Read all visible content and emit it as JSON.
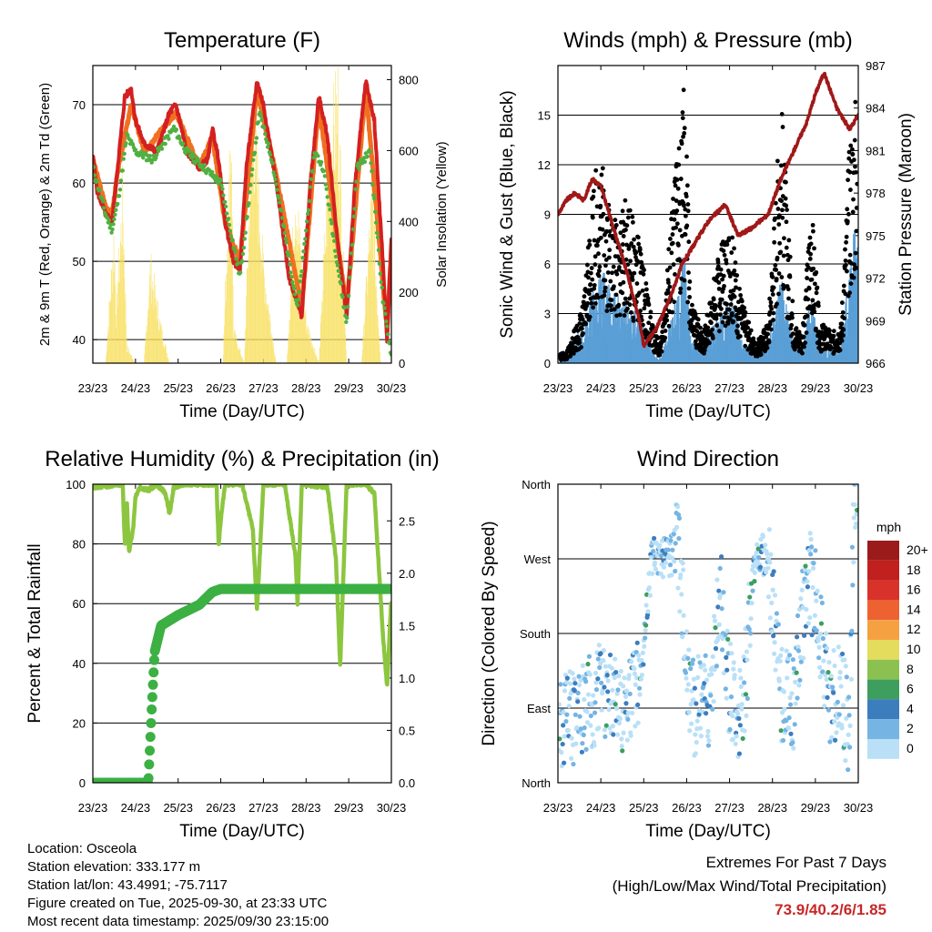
{
  "colors": {
    "temp2m": "#d32020",
    "temp9m": "#f07020",
    "dewpoint": "#50b040",
    "solar": "#f8e060",
    "gust": "#000000",
    "wind": "#5a9fd6",
    "pressure": "#a01818",
    "rh": "#8cc63f",
    "precip": "#3cb043",
    "extremes": "#c62828"
  },
  "x_ticks": [
    "23/23",
    "24/23",
    "25/23",
    "26/23",
    "27/23",
    "28/23",
    "29/23",
    "30/23"
  ],
  "chart_data": [
    {
      "id": "temperature",
      "type": "line",
      "title": "Temperature (F)",
      "xlabel": "Time (Day/UTC)",
      "ylabel": "2m & 9m T (Red, Orange) & 2m Td (Green)",
      "ylabel_right": "Solar Insolation (Yellow)",
      "ylim": [
        37,
        75
      ],
      "ylim_right": [
        0,
        840
      ],
      "xlim": [
        0,
        7
      ],
      "y_ticks": [
        40,
        50,
        60,
        70
      ],
      "y_ticks_right": [
        0,
        200,
        400,
        600,
        800
      ],
      "series": [
        {
          "name": "2m T",
          "x": [
            0,
            0.1,
            0.3,
            0.45,
            0.6,
            0.75,
            0.9,
            1.0,
            1.2,
            1.5,
            1.8,
            1.95,
            2.2,
            2.5,
            2.7,
            2.8,
            2.95,
            3.1,
            3.3,
            3.45,
            3.6,
            3.85,
            4.0,
            4.3,
            4.6,
            4.9,
            5.1,
            5.3,
            5.5,
            5.75,
            5.95,
            6.15,
            6.4,
            6.6,
            6.8,
            6.9,
            7.0
          ],
          "values": [
            63.5,
            59,
            56,
            55,
            63,
            71,
            72,
            68,
            65,
            64,
            69,
            70,
            64,
            62,
            63,
            67,
            63,
            55,
            50,
            49,
            62,
            73,
            70,
            60,
            48,
            43,
            60,
            71,
            66,
            52,
            43,
            60,
            73,
            68,
            50,
            40,
            53
          ]
        },
        {
          "name": "9m T",
          "x": [
            0,
            0.3,
            0.45,
            0.6,
            0.9,
            1.2,
            1.95,
            2.5,
            2.8,
            3.1,
            3.45,
            3.85,
            4.3,
            4.9,
            5.3,
            5.95,
            6.4,
            6.9,
            7.0
          ],
          "values": [
            63,
            57,
            56,
            62,
            70,
            64,
            69,
            62,
            66,
            55,
            50,
            72,
            61,
            44,
            70,
            44,
            72,
            41,
            52
          ]
        },
        {
          "name": "2m Td",
          "x": [
            0,
            0.3,
            0.45,
            0.6,
            0.8,
            1.0,
            1.4,
            1.9,
            2.2,
            2.6,
            3.0,
            3.45,
            3.9,
            4.2,
            4.8,
            5.2,
            5.4,
            5.95,
            6.2,
            6.5,
            6.8,
            7.0
          ],
          "values": [
            62,
            56,
            54,
            58,
            66,
            64,
            63,
            67,
            64,
            62,
            60,
            48,
            69,
            63,
            44,
            64,
            62,
            42,
            62,
            64,
            45,
            38
          ]
        },
        {
          "name": "Solar",
          "axis": "right",
          "x": [
            0.3,
            0.5,
            0.55,
            0.7,
            0.8,
            1.0,
            1.2,
            1.35,
            1.6,
            1.8,
            1.95,
            2.15,
            2.35,
            2.7,
            3.05,
            3.25,
            3.3,
            3.55,
            3.75,
            4.0,
            4.3,
            4.55,
            4.75,
            5.0,
            5.3,
            5.55,
            5.75,
            5.95,
            6.3,
            6.55,
            6.75
          ],
          "values": [
            0,
            400,
            150,
            520,
            50,
            0,
            0,
            300,
            110,
            0,
            0,
            0,
            0,
            0,
            0,
            760,
            100,
            0,
            800,
            300,
            0,
            0,
            550,
            130,
            0,
            650,
            820,
            0,
            0,
            520,
            0
          ]
        }
      ]
    },
    {
      "id": "winds",
      "type": "scatter",
      "title": "Winds (mph) & Pressure (mb)",
      "xlabel": "Time (Day/UTC)",
      "ylabel": "Sonic Wind & Gust (Blue, Black)",
      "ylabel_right": "Station Pressure (Maroon)",
      "ylim": [
        0,
        18
      ],
      "ylim_right": [
        966,
        987
      ],
      "xlim": [
        0,
        7
      ],
      "y_ticks": [
        0,
        3,
        6,
        9,
        12,
        15
      ],
      "y_ticks_right": [
        966,
        969,
        972,
        975,
        978,
        981,
        984,
        987
      ],
      "series": [
        {
          "name": "Gust",
          "x": [
            0.2,
            0.6,
            0.8,
            1.0,
            1.3,
            1.6,
            1.9,
            2.2,
            2.4,
            2.8,
            2.95,
            3.1,
            3.4,
            3.7,
            4.0,
            4.3,
            4.6,
            4.9,
            5.2,
            5.5,
            5.7,
            5.9,
            6.1,
            6.4,
            6.6,
            6.8,
            6.95
          ],
          "values": [
            0.5,
            3,
            9,
            10.5,
            7,
            8,
            6,
            2,
            1,
            11,
            14,
            3,
            1.5,
            5,
            7,
            3,
            1,
            2,
            13,
            2,
            1.5,
            8,
            2,
            1.5,
            2,
            11,
            13
          ]
        },
        {
          "name": "Wind",
          "x": [
            0.2,
            0.6,
            0.8,
            1.0,
            1.3,
            1.6,
            1.9,
            2.2,
            2.4,
            2.8,
            2.95,
            3.1,
            3.4,
            3.7,
            4.0,
            4.3,
            4.6,
            4.9,
            5.2,
            5.5,
            5.7,
            5.9,
            6.1,
            6.4,
            6.6,
            6.8,
            6.95
          ],
          "values": [
            0.2,
            2,
            3,
            4,
            3,
            2.5,
            2,
            0.5,
            0.2,
            3,
            5,
            1,
            0.5,
            2,
            3,
            1,
            0.3,
            0.8,
            4,
            0.8,
            0.5,
            3,
            0.8,
            0.5,
            1,
            4,
            6
          ]
        },
        {
          "name": "Pressure",
          "axis": "right",
          "x": [
            0,
            0.2,
            0.4,
            0.6,
            0.8,
            1.0,
            1.3,
            1.6,
            1.9,
            2.0,
            2.3,
            2.6,
            2.9,
            3.2,
            3.5,
            3.9,
            4.2,
            4.5,
            4.9,
            5.2,
            5.5,
            5.8,
            6.0,
            6.2,
            6.5,
            6.8,
            7.0
          ],
          "values": [
            976.5,
            977.5,
            978,
            977.5,
            979,
            978.5,
            975.5,
            972.5,
            969,
            967.2,
            968.5,
            970.5,
            973,
            974.5,
            976,
            977.2,
            975,
            975.5,
            976.5,
            979,
            981,
            983,
            985,
            986.5,
            984,
            982.5,
            983.5
          ]
        }
      ]
    },
    {
      "id": "humidity",
      "type": "line",
      "title": "Relative Humidity (%) & Precipitation (in)",
      "xlabel": "Time (Day/UTC)",
      "ylabel": "Percent & Total Rainfall",
      "ylim": [
        0,
        100
      ],
      "ylim_right": [
        0,
        2.85
      ],
      "xlim": [
        0,
        7
      ],
      "y_ticks": [
        0,
        20,
        40,
        60,
        80,
        100
      ],
      "y_ticks_right": [
        0.0,
        0.5,
        1.0,
        1.5,
        2.0,
        2.5
      ],
      "series": [
        {
          "name": "RH",
          "x": [
            0,
            0.7,
            0.75,
            0.8,
            0.85,
            0.95,
            1.0,
            1.1,
            1.3,
            1.5,
            1.7,
            1.8,
            1.9,
            2.1,
            2.9,
            2.95,
            3.0,
            3.1,
            3.5,
            3.75,
            3.85,
            4.0,
            4.5,
            4.75,
            4.8,
            4.9,
            5.5,
            5.7,
            5.8,
            5.95,
            6.4,
            6.6,
            6.8,
            6.9,
            7.0
          ],
          "values": [
            99,
            100,
            80,
            93,
            77,
            86,
            96,
            99,
            98,
            100,
            97,
            90,
            99,
            100,
            100,
            80,
            88,
            100,
            100,
            85,
            58,
            100,
            100,
            76,
            60,
            100,
            99,
            75,
            39,
            100,
            100,
            97,
            50,
            32,
            62
          ]
        },
        {
          "name": "Precip",
          "axis": "right",
          "x": [
            0,
            1.3,
            1.38,
            1.45,
            1.6,
            2.0,
            2.5,
            2.8,
            3.0,
            7.0
          ],
          "values": [
            0,
            0,
            0.7,
            1.25,
            1.5,
            1.6,
            1.7,
            1.82,
            1.85,
            1.85
          ]
        }
      ]
    },
    {
      "id": "direction",
      "type": "scatter",
      "title": "Wind Direction",
      "xlabel": "Time (Day/UTC)",
      "ylabel": "Direction (Colored By Speed)",
      "xlim": [
        0,
        7
      ],
      "ylim": [
        0,
        360
      ],
      "y_tick_labels": [
        "North",
        "East",
        "South",
        "West",
        "North"
      ],
      "y_ticks": [
        0,
        90,
        180,
        270,
        360
      ],
      "legend_title": "mph",
      "legend_labels": [
        "20+",
        "18",
        "16",
        "14",
        "12",
        "10",
        "8",
        "6",
        "4",
        "2",
        "0"
      ],
      "legend_colors": [
        "#9b1b1b",
        "#c0201e",
        "#d8322a",
        "#ee6130",
        "#f5a142",
        "#e4dc5c",
        "#8cc152",
        "#3e9e5e",
        "#3c7dbe",
        "#75b4e3",
        "#b9e0f7"
      ],
      "series": [
        {
          "name": "Direction",
          "x": [
            0.2,
            0.5,
            0.8,
            1.0,
            1.3,
            1.6,
            1.9,
            2.2,
            2.5,
            2.8,
            3.1,
            3.5,
            3.8,
            4.0,
            4.3,
            4.6,
            4.9,
            5.2,
            5.5,
            5.8,
            6.0,
            6.3,
            6.6,
            6.8,
            6.9,
            7.0
          ],
          "values": [
            70,
            90,
            100,
            110,
            95,
            95,
            120,
            275,
            270,
            280,
            90,
            100,
            230,
            110,
            80,
            280,
            270,
            110,
            95,
            250,
            230,
            100,
            110,
            60,
            350,
            340
          ]
        }
      ]
    }
  ],
  "info": {
    "location": "Location: Osceola",
    "elevation": "Station elevation: 333.177 m",
    "latlon": "Station lat/lon: 43.4991; -75.7117",
    "created": "Figure created on Tue, 2025-09-30, at 23:33 UTC",
    "recent": "Most recent data timestamp: 2025/09/30 23:15:00"
  },
  "extremes": {
    "title": "Extremes For Past 7 Days",
    "subtitle": "(High/Low/Max Wind/Total Precipitation)",
    "values": "73.9/40.2/6/1.85"
  }
}
